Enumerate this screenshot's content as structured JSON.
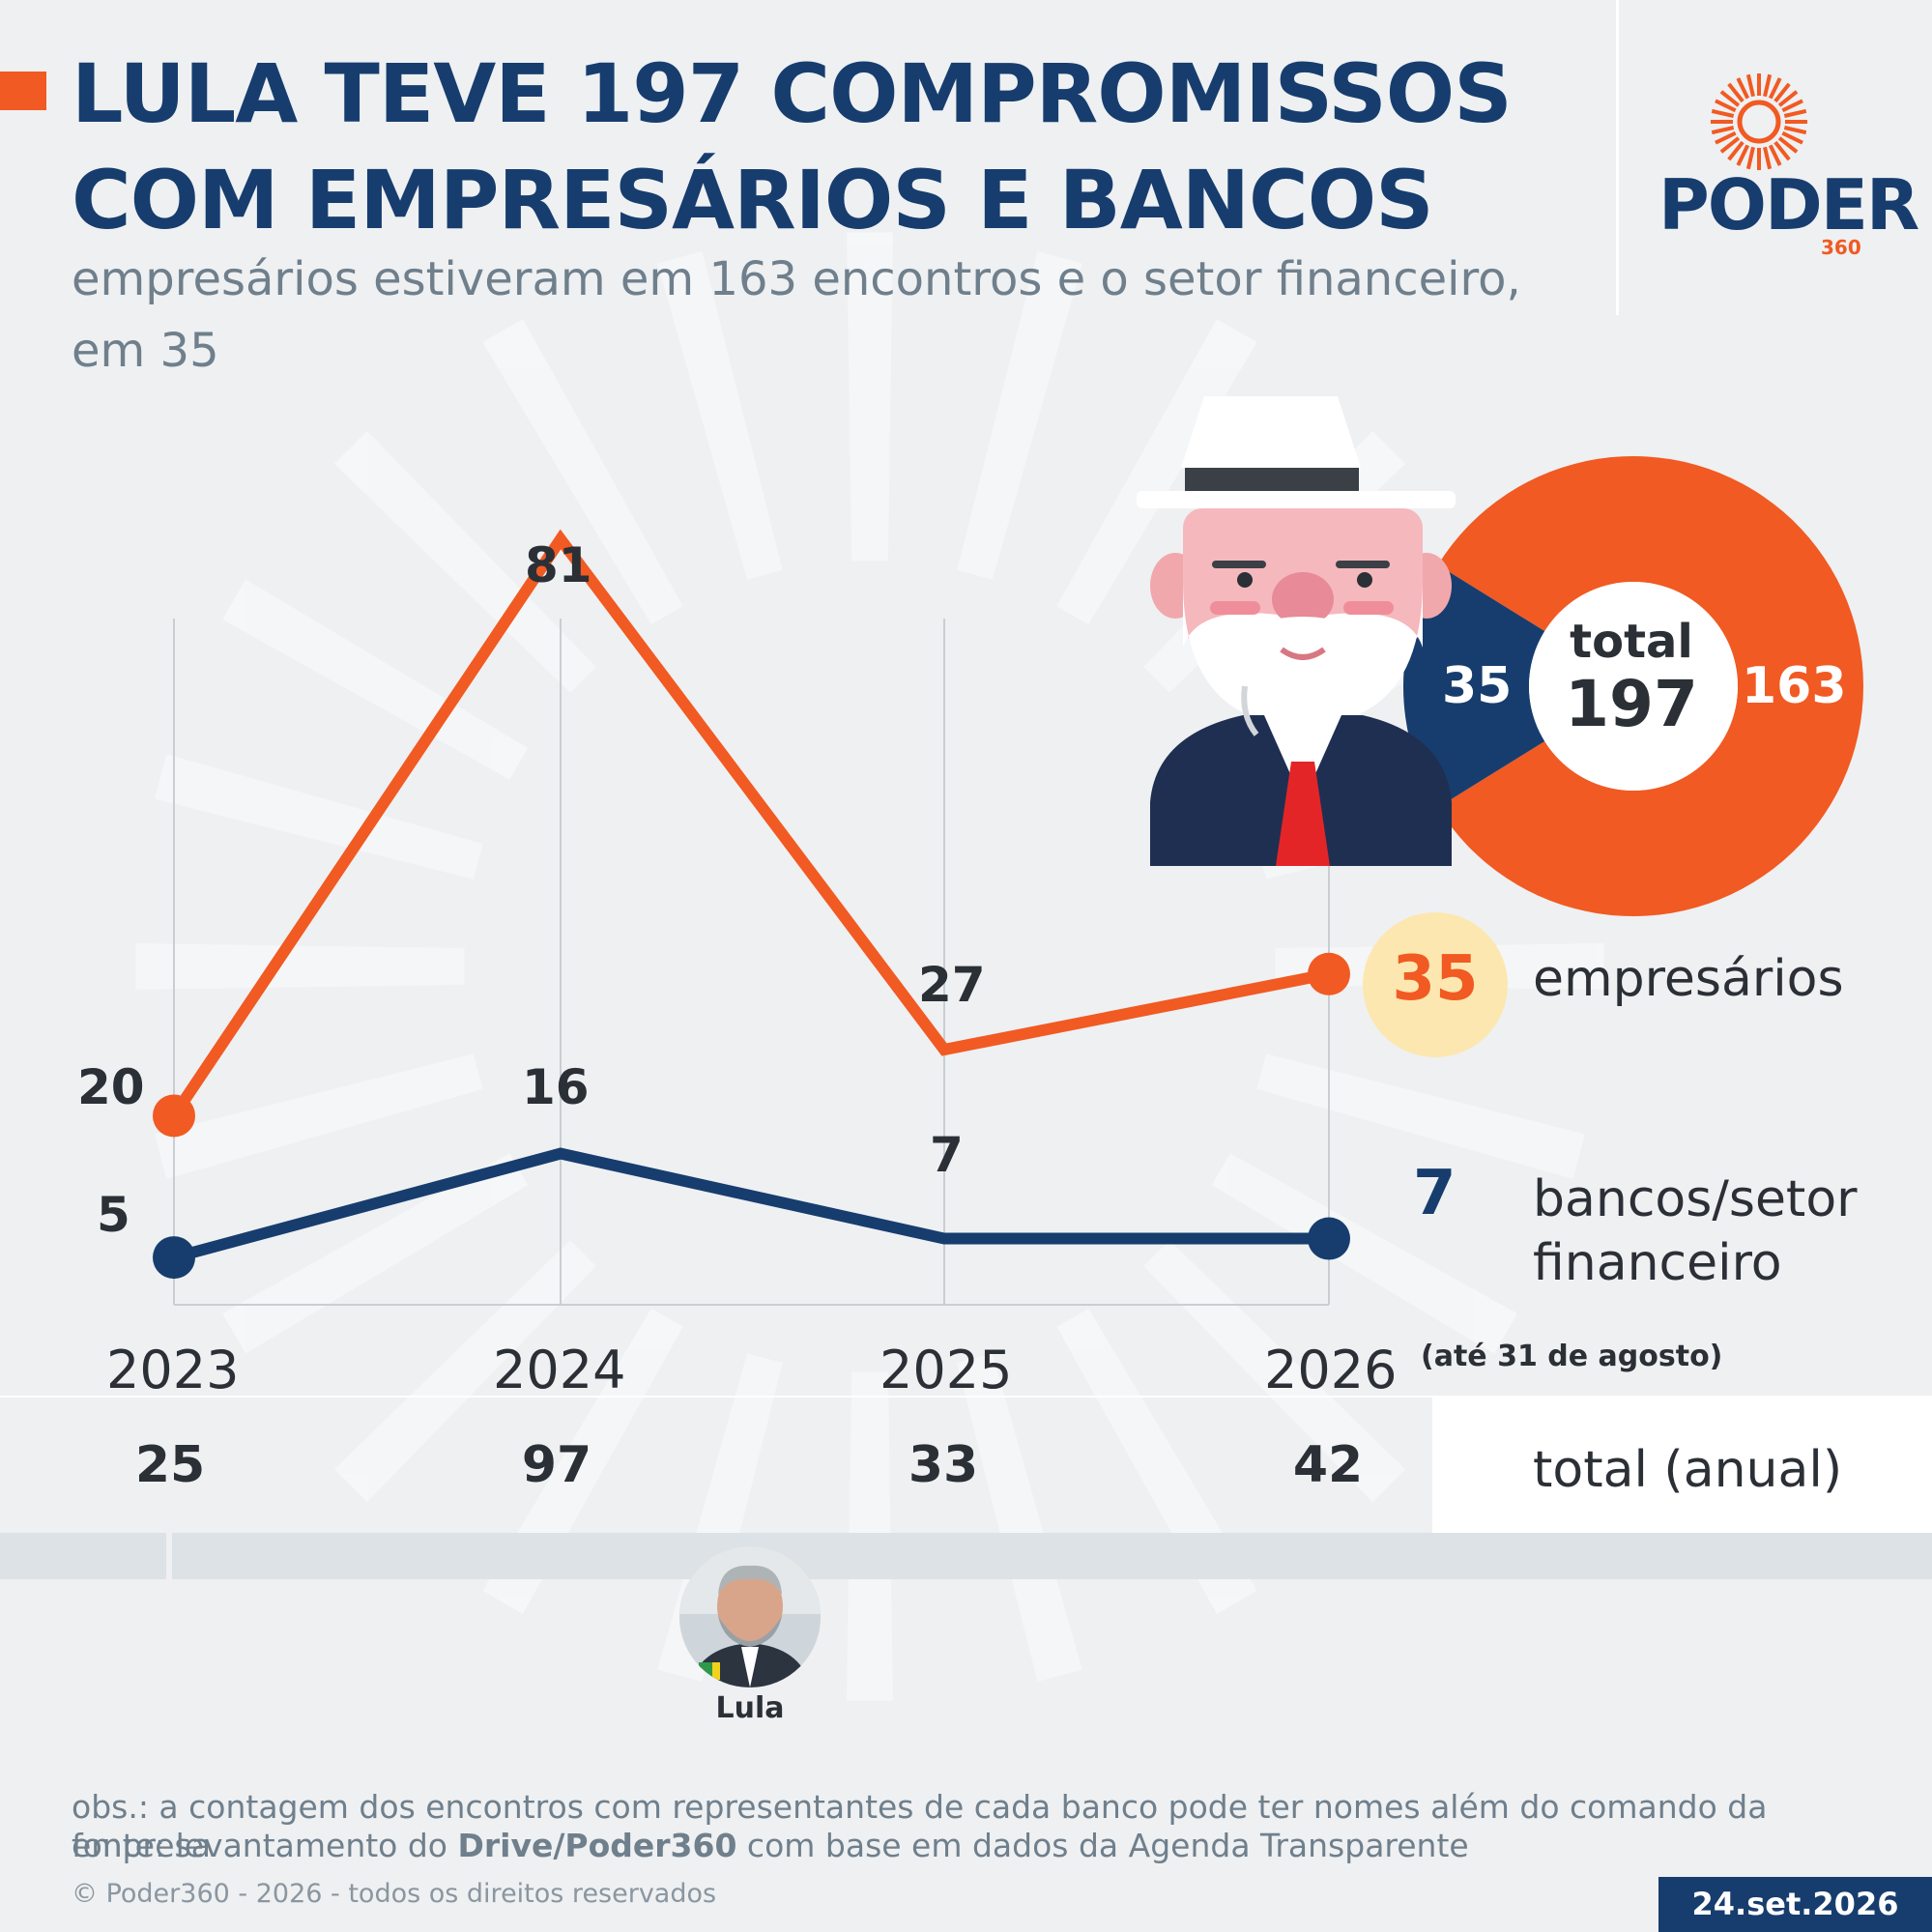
{
  "header": {
    "title_line1": "LULA TEVE 197 COMPROMISSOS",
    "title_line2": "COM EMPRESÁRIOS E BANCOS",
    "subtitle_line1": "empresários estiveram em 163 encontros e o setor financeiro,",
    "subtitle_line2": "em 35"
  },
  "logo": {
    "word": "PODER",
    "number": "360"
  },
  "colors": {
    "accent": "#f15a22",
    "navy": "#173d6e",
    "highlight": "#fde7b0"
  },
  "chart_data": [
    {
      "type": "line",
      "categories": [
        "2023",
        "2024",
        "2025",
        "2026"
      ],
      "category_note": "(até 31 de agosto)",
      "series": [
        {
          "name": "empresários",
          "values": [
            20,
            81,
            27,
            35
          ],
          "color": "#f15a22"
        },
        {
          "name": "bancos/setor financeiro",
          "values": [
            5,
            16,
            7,
            7
          ],
          "color": "#173d6e"
        }
      ],
      "ylim": [
        0,
        90
      ],
      "grid": "vertical",
      "totals_label": "total (anual)",
      "totals": [
        25,
        97,
        33,
        42
      ]
    },
    {
      "type": "pie",
      "center_label": "total",
      "center_value": "197",
      "slices": [
        {
          "value": 163,
          "color": "#f15a22"
        },
        {
          "value": 35,
          "color": "#173d6e"
        }
      ]
    }
  ],
  "legend": {
    "emp_value": "35",
    "emp_label": "empresários",
    "bank_value": "7",
    "bank_label_line1": "bancos/setor",
    "bank_label_line2": "financeiro"
  },
  "labels": {
    "emp": [
      "20",
      "81",
      "27"
    ],
    "bank": [
      "5",
      "16",
      "7"
    ]
  },
  "donut_labels": {
    "bank": "35",
    "emp": "163",
    "total_word": "total",
    "total_value": "197"
  },
  "photo": {
    "caption": "Lula"
  },
  "footer": {
    "obs": "obs.: a contagem dos encontros com representantes de cada banco pode ter nomes além do comando da empresa",
    "source_prefix": "fonte: levantamento do ",
    "source_bold": "Drive/Poder360",
    "source_suffix": " com base em dados da Agenda Transparente",
    "copyright": "© Poder360 - 2026 - todos os direitos reservados",
    "date": "24.set.2026"
  }
}
